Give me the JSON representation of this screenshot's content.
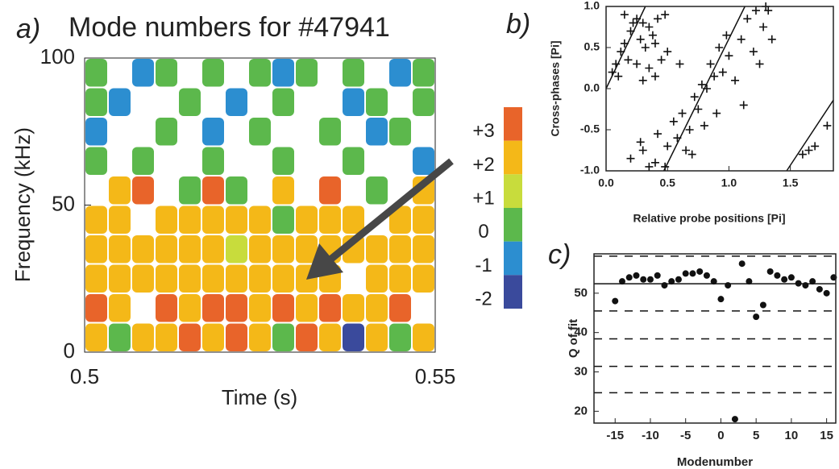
{
  "chart_data": [
    {
      "type": "heatmap",
      "panel_label": "a)",
      "title": "Mode numbers for #47941",
      "xlabel": "Time (s)",
      "ylabel": "Frequency (kHz)",
      "xlim": [
        0.5,
        0.55
      ],
      "ylim": [
        0,
        100
      ],
      "xticks": [
        0.5,
        0.55
      ],
      "yticks": [
        0,
        50,
        100
      ],
      "values": [
        [
          2,
          0,
          2,
          2,
          3,
          2,
          3,
          2,
          0,
          3,
          2,
          -2,
          2,
          0,
          2
        ],
        [
          3,
          2,
          null,
          3,
          2,
          3,
          3,
          2,
          3,
          2,
          3,
          2,
          2,
          3,
          null
        ],
        [
          2,
          2,
          2,
          2,
          2,
          2,
          2,
          2,
          2,
          2,
          2,
          null,
          2,
          2,
          2
        ],
        [
          2,
          2,
          2,
          2,
          2,
          2,
          1,
          2,
          2,
          2,
          2,
          2,
          2,
          2,
          2
        ],
        [
          2,
          2,
          null,
          2,
          2,
          2,
          2,
          2,
          0,
          2,
          2,
          2,
          null,
          2,
          2
        ],
        [
          null,
          2,
          3,
          null,
          0,
          3,
          0,
          null,
          2,
          null,
          3,
          null,
          0,
          null,
          2
        ],
        [
          0,
          null,
          0,
          null,
          null,
          0,
          null,
          null,
          0,
          null,
          null,
          0,
          null,
          null,
          -1
        ],
        [
          -1,
          null,
          null,
          0,
          null,
          -1,
          null,
          0,
          null,
          null,
          0,
          null,
          -1,
          0,
          null
        ],
        [
          0,
          -1,
          null,
          null,
          0,
          null,
          -1,
          null,
          0,
          null,
          null,
          -1,
          0,
          null,
          0
        ],
        [
          0,
          null,
          -1,
          0,
          null,
          0,
          null,
          0,
          -1,
          0,
          null,
          0,
          null,
          -1,
          0
        ]
      ],
      "colorbar": {
        "ticks": [
          {
            "value": 3,
            "label": "+3"
          },
          {
            "value": 2,
            "label": "+2"
          },
          {
            "value": 1,
            "label": "+1"
          },
          0,
          -1,
          -2
        ],
        "colors": [
          "#e8642a",
          "#f4b818",
          "#c8dc3c",
          "#5cb84c",
          "#2c8ed0",
          "#3a4a9c"
        ]
      }
    },
    {
      "type": "scatter",
      "panel_label": "b)",
      "marker": "plus",
      "color": "#111",
      "xlabel": "Relative probe positions [Pi]",
      "ylabel": "Cross-phases [Pi]",
      "xlim": [
        0,
        1.85
      ],
      "ylim": [
        -1,
        1
      ],
      "xticks": [
        {
          "value": 0,
          "label": "0.0"
        },
        {
          "value": 0.5,
          "label": "0.5"
        },
        {
          "value": 1,
          "label": "1.0"
        },
        {
          "value": 1.5,
          "label": "1.5"
        }
      ],
      "yticks": [
        {
          "value": -1,
          "label": "-1.0"
        },
        {
          "value": -0.5,
          "label": "-0.5"
        },
        {
          "value": 0,
          "label": "0.0"
        },
        {
          "value": 0.5,
          "label": "0.5"
        },
        {
          "value": 1,
          "label": "1.0"
        }
      ],
      "x": [
        0.05,
        0.08,
        0.1,
        0.12,
        0.15,
        0.18,
        0.2,
        0.22,
        0.25,
        0.28,
        0.3,
        0.32,
        0.35,
        0.38,
        0.4,
        0.42,
        0.45,
        0.48,
        0.5,
        0.3,
        0.25,
        0.35,
        0.4,
        0.15,
        0.6,
        0.2,
        0.28,
        0.3,
        0.35,
        0.4,
        0.42,
        0.48,
        0.5,
        0.55,
        0.58,
        0.62,
        0.65,
        0.68,
        0.7,
        0.72,
        0.75,
        0.78,
        0.8,
        0.82,
        0.85,
        0.88,
        0.9,
        0.92,
        0.95,
        0.98,
        1.0,
        1.05,
        1.1,
        1.12,
        1.15,
        1.2,
        1.25,
        1.28,
        1.32,
        1.35,
        1.3,
        1.22,
        1.6,
        1.65,
        1.7,
        1.8
      ],
      "y": [
        0.2,
        0.3,
        0.15,
        0.45,
        0.55,
        0.35,
        0.7,
        0.8,
        0.85,
        0.6,
        0.8,
        0.5,
        0.75,
        0.65,
        0.55,
        0.85,
        0.35,
        0.9,
        0.45,
        0.1,
        0.3,
        0.25,
        0.15,
        0.9,
        0.3,
        -0.85,
        -0.65,
        -0.75,
        -0.95,
        -0.9,
        -0.55,
        -0.95,
        -0.7,
        -0.4,
        -0.6,
        -0.3,
        -0.75,
        -0.5,
        -0.8,
        -0.1,
        -0.25,
        0.05,
        -0.45,
        0.0,
        0.3,
        0.15,
        -0.3,
        0.5,
        0.2,
        0.65,
        0.4,
        0.1,
        0.6,
        -0.2,
        0.85,
        0.45,
        0.3,
        0.75,
        0.95,
        0.6,
        1.0,
        0.95,
        -0.8,
        -0.75,
        -0.7,
        -0.45
      ],
      "lines": [
        {
          "x": [
            0,
            0.32
          ],
          "y": [
            0,
            1
          ]
        },
        {
          "x": [
            0.47,
            1.13
          ],
          "y": [
            -1,
            1
          ]
        },
        {
          "x": [
            1.47,
            1.85
          ],
          "y": [
            -1,
            -0.14
          ]
        }
      ]
    },
    {
      "type": "scatter",
      "panel_label": "c)",
      "marker": "circle",
      "color": "#111",
      "xlabel": "Modenumber",
      "ylabel": "Q of fit",
      "xlim": [
        -18,
        16.3
      ],
      "ylim": [
        17,
        60
      ],
      "xticks": [
        -15,
        -10,
        -5,
        0,
        5,
        10,
        15
      ],
      "yticks": [
        20,
        30,
        40,
        50
      ],
      "x": [
        -15,
        -14,
        -13,
        -12,
        -11,
        -10,
        -9,
        -8,
        -7,
        -6,
        -5,
        -4,
        -3,
        -2,
        -1,
        0,
        1,
        2,
        3,
        4,
        5,
        6,
        7,
        8,
        9,
        10,
        11,
        12,
        13,
        14,
        15,
        16
      ],
      "y": [
        48,
        53,
        54,
        54.5,
        53.5,
        53.5,
        54.5,
        52,
        53,
        53.5,
        55,
        55,
        55.5,
        54.5,
        53,
        48.5,
        52,
        18,
        57.5,
        53,
        44,
        47,
        55.5,
        54.5,
        53.5,
        54,
        52.5,
        52,
        53,
        51,
        50,
        54
      ],
      "reference_lines": [
        {
          "value": 52.4,
          "style": "solid"
        },
        {
          "value": 59.4,
          "style": "dashed"
        },
        {
          "value": 45.5,
          "style": "dashed"
        },
        {
          "value": 38.4,
          "style": "dashed"
        },
        {
          "value": 31.4,
          "style": "dashed"
        },
        {
          "value": 24.7,
          "style": "dashed"
        }
      ]
    }
  ]
}
